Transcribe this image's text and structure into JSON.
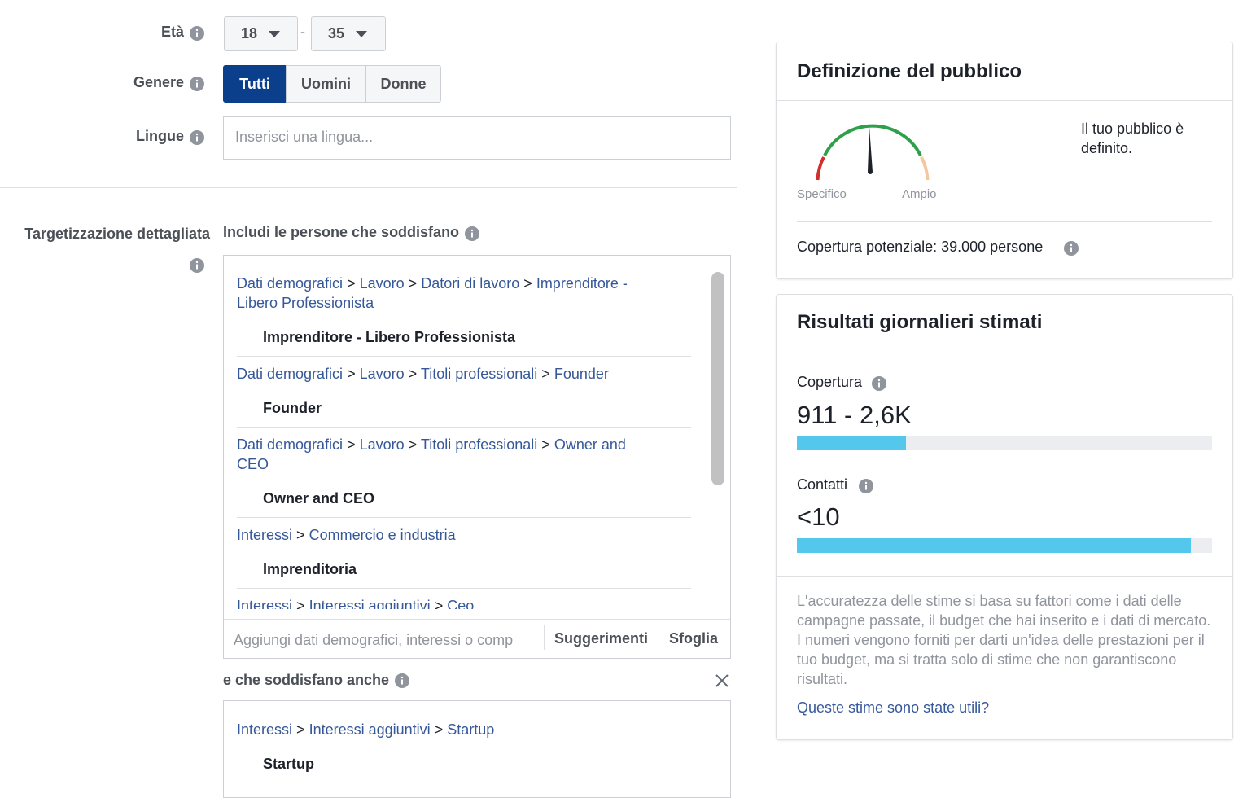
{
  "age": {
    "label": "Età",
    "min": "18",
    "separator": "-",
    "max": "35"
  },
  "gender": {
    "label": "Genere",
    "options": [
      "Tutti",
      "Uomini",
      "Donne"
    ]
  },
  "languages": {
    "label": "Lingue",
    "placeholder": "Inserisci una lingua..."
  },
  "detailed": {
    "label": "Targetizzazione dettagliata",
    "include_title": "Includi le persone che soddisfano",
    "separator": ">",
    "items": [
      {
        "path": [
          "Dati demografici",
          "Lavoro",
          "Datori di lavoro",
          "Imprenditore - Libero Professionista"
        ],
        "name": "Imprenditore - Libero Professionista"
      },
      {
        "path": [
          "Dati demografici",
          "Lavoro",
          "Titoli professionali",
          "Founder"
        ],
        "name": "Founder"
      },
      {
        "path": [
          "Dati demografici",
          "Lavoro",
          "Titoli professionali",
          "Owner and CEO"
        ],
        "name": "Owner and CEO"
      },
      {
        "path": [
          "Interessi",
          "Commercio e industria"
        ],
        "name": "Imprenditoria"
      },
      {
        "path": [
          "Interessi",
          "Interessi aggiuntivi",
          "Ceo"
        ]
      }
    ],
    "search_placeholder": "Aggiungi dati demografici, interessi o comp",
    "suggestions": "Suggerimenti",
    "browse": "Sfoglia",
    "narrow_title": "e che soddisfano anche",
    "narrow_items": [
      {
        "path": [
          "Interessi",
          "Interessi aggiuntivi",
          "Startup"
        ],
        "name": "Startup"
      }
    ]
  },
  "audience": {
    "title": "Definizione del pubblico",
    "specific": "Specifico",
    "broad": "Ampio",
    "status": "Il tuo pubblico è definito.",
    "reach": "Copertura potenziale: 39.000 persone"
  },
  "results": {
    "title": "Risultati giornalieri stimati",
    "reach_label": "Copertura",
    "reach_value": "911 - 2,6K",
    "contacts_label": "Contatti",
    "contacts_value": "<10",
    "disclaimer": "L'accuratezza delle stime si basa su fattori come i dati delle campagne passate, il budget che hai inserito e i dati di mercato. I numeri vengono forniti per darti un'idea delle prestazioni per il tuo budget, ma si tratta solo di stime che non garantiscono risultati.",
    "feedback": "Queste stime sono state utili?"
  }
}
